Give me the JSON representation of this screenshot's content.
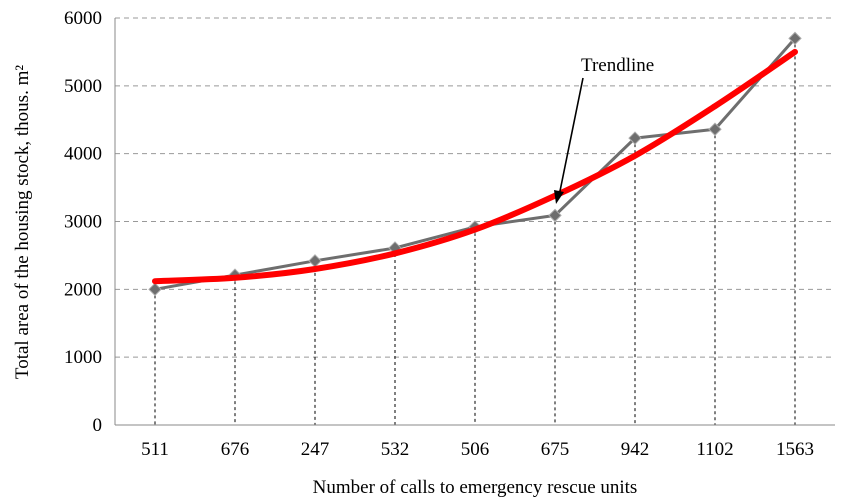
{
  "chart_data": {
    "type": "line",
    "xlabel": "Number of calls to emergency rescue units",
    "ylabel": "Total area of the housing stock, thous. m²",
    "categories": [
      "511",
      "676",
      "247",
      "532",
      "506",
      "675",
      "942",
      "1102",
      "1563"
    ],
    "ylim": [
      0,
      6000
    ],
    "yticks": [
      "0",
      "1000",
      "2000",
      "3000",
      "4000",
      "5000",
      "6000"
    ],
    "grid": true,
    "series": [
      {
        "values": [
          2000,
          2210,
          2420,
          2610,
          2920,
          3090,
          4230,
          4360,
          5700
        ],
        "color": "#6e6e6e",
        "marker": "diamond"
      }
    ],
    "trendline": {
      "values": [
        2120,
        2170,
        2300,
        2530,
        2880,
        3380,
        3970,
        4700,
        5500
      ],
      "color": "#ff0000"
    },
    "annotations": [
      {
        "text": "Trendline"
      }
    ]
  }
}
